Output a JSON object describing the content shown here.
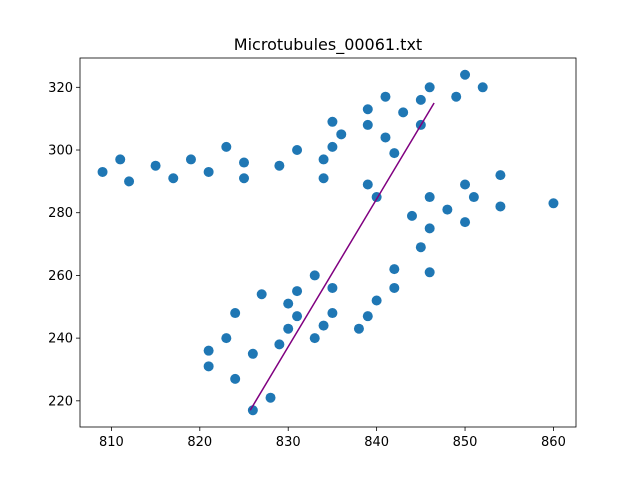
{
  "chart_data": {
    "type": "scatter",
    "title": "Microtubules_00061.txt",
    "xlabel": "",
    "ylabel": "",
    "xlim": [
      806.45,
      862.55
    ],
    "ylim": [
      211.65,
      329.35
    ],
    "xticks": [
      810,
      820,
      830,
      840,
      850,
      860
    ],
    "yticks": [
      220,
      240,
      260,
      280,
      300,
      320
    ],
    "grid": false,
    "colors": {
      "points": "#1f77b4",
      "fit_line": "#800080"
    },
    "points": [
      {
        "x": 809,
        "y": 293
      },
      {
        "x": 811,
        "y": 297
      },
      {
        "x": 812,
        "y": 290
      },
      {
        "x": 815,
        "y": 295
      },
      {
        "x": 817,
        "y": 291
      },
      {
        "x": 819,
        "y": 297
      },
      {
        "x": 821,
        "y": 293
      },
      {
        "x": 823,
        "y": 301
      },
      {
        "x": 825,
        "y": 296
      },
      {
        "x": 825,
        "y": 291
      },
      {
        "x": 829,
        "y": 295
      },
      {
        "x": 831,
        "y": 300
      },
      {
        "x": 834,
        "y": 297
      },
      {
        "x": 834,
        "y": 291
      },
      {
        "x": 835,
        "y": 301
      },
      {
        "x": 835,
        "y": 309
      },
      {
        "x": 836,
        "y": 305
      },
      {
        "x": 839,
        "y": 313
      },
      {
        "x": 839,
        "y": 308
      },
      {
        "x": 841,
        "y": 317
      },
      {
        "x": 841,
        "y": 304
      },
      {
        "x": 842,
        "y": 299
      },
      {
        "x": 843,
        "y": 312
      },
      {
        "x": 845,
        "y": 316
      },
      {
        "x": 845,
        "y": 308
      },
      {
        "x": 846,
        "y": 320
      },
      {
        "x": 849,
        "y": 317
      },
      {
        "x": 850,
        "y": 324
      },
      {
        "x": 852,
        "y": 320
      },
      {
        "x": 839,
        "y": 289
      },
      {
        "x": 840,
        "y": 285
      },
      {
        "x": 844,
        "y": 279
      },
      {
        "x": 846,
        "y": 285
      },
      {
        "x": 846,
        "y": 275
      },
      {
        "x": 848,
        "y": 281
      },
      {
        "x": 850,
        "y": 289
      },
      {
        "x": 850,
        "y": 277
      },
      {
        "x": 851,
        "y": 285
      },
      {
        "x": 854,
        "y": 292
      },
      {
        "x": 854,
        "y": 282
      },
      {
        "x": 860,
        "y": 283
      },
      {
        "x": 845,
        "y": 269
      },
      {
        "x": 846,
        "y": 261
      },
      {
        "x": 842,
        "y": 262
      },
      {
        "x": 842,
        "y": 256
      },
      {
        "x": 840,
        "y": 252
      },
      {
        "x": 839,
        "y": 247
      },
      {
        "x": 838,
        "y": 243
      },
      {
        "x": 833,
        "y": 260
      },
      {
        "x": 835,
        "y": 256
      },
      {
        "x": 835,
        "y": 248
      },
      {
        "x": 834,
        "y": 244
      },
      {
        "x": 833,
        "y": 240
      },
      {
        "x": 831,
        "y": 255
      },
      {
        "x": 831,
        "y": 247
      },
      {
        "x": 830,
        "y": 251
      },
      {
        "x": 830,
        "y": 243
      },
      {
        "x": 829,
        "y": 238
      },
      {
        "x": 827,
        "y": 254
      },
      {
        "x": 826,
        "y": 235
      },
      {
        "x": 826,
        "y": 217
      },
      {
        "x": 828,
        "y": 221
      },
      {
        "x": 824,
        "y": 248
      },
      {
        "x": 823,
        "y": 240
      },
      {
        "x": 824,
        "y": 227
      },
      {
        "x": 821,
        "y": 236
      },
      {
        "x": 821,
        "y": 231
      }
    ],
    "fit_line": {
      "x": [
        825.7,
        846.5
      ],
      "y": [
        217,
        315
      ]
    }
  }
}
